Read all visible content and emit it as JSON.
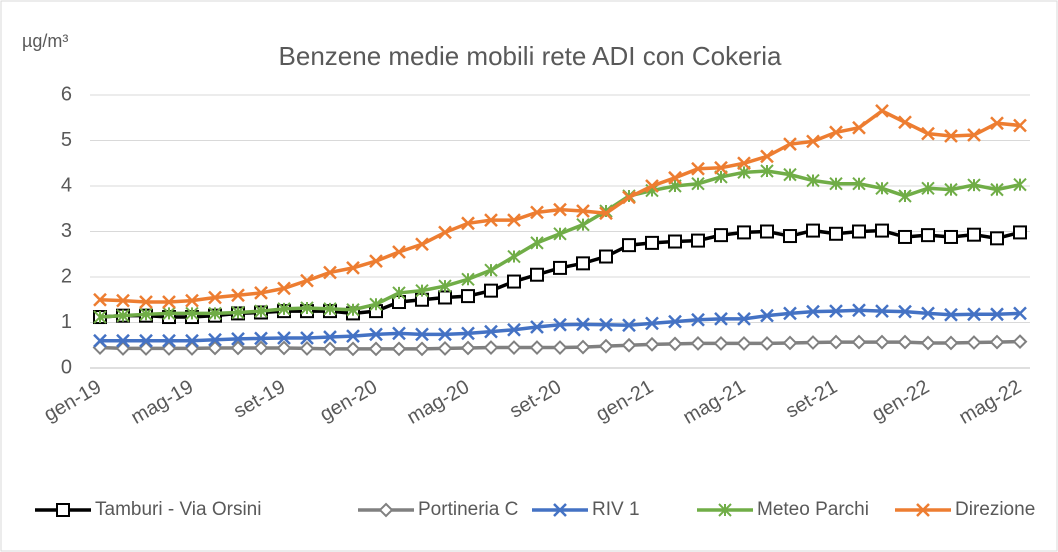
{
  "chart_data": {
    "type": "line",
    "title": "Benzene medie mobili rete ADI con Cokeria",
    "y_label": "µg/m³",
    "categories": [
      "gen-19",
      null,
      null,
      null,
      "mag-19",
      null,
      null,
      null,
      "set-19",
      null,
      null,
      null,
      "gen-20",
      null,
      null,
      null,
      "mag-20",
      null,
      null,
      null,
      "set-20",
      null,
      null,
      null,
      "gen-21",
      null,
      null,
      null,
      "mag-21",
      null,
      null,
      null,
      "set-21",
      null,
      null,
      null,
      "gen-22",
      null,
      null,
      null,
      "mag-22"
    ],
    "ylim": [
      0,
      6
    ],
    "yticks": [
      0,
      1,
      2,
      3,
      4,
      5,
      6
    ],
    "grid": true,
    "series": [
      {
        "name": "Tamburi - Via Orsini",
        "color": "#000000",
        "marker": "square",
        "values": [
          1.12,
          1.15,
          1.15,
          1.12,
          1.12,
          1.15,
          1.2,
          1.22,
          1.25,
          1.25,
          1.25,
          1.2,
          1.25,
          1.45,
          1.5,
          1.55,
          1.58,
          1.7,
          1.9,
          2.05,
          2.2,
          2.3,
          2.45,
          2.7,
          2.75,
          2.78,
          2.8,
          2.92,
          2.98,
          3.0,
          2.9,
          3.02,
          2.95,
          3.0,
          3.02,
          2.88,
          2.92,
          2.88,
          2.93,
          2.85,
          2.98
        ]
      },
      {
        "name": "Portineria C",
        "color": "#808080",
        "marker": "diamond",
        "values": [
          0.45,
          0.43,
          0.43,
          0.43,
          0.43,
          0.44,
          0.44,
          0.44,
          0.44,
          0.43,
          0.42,
          0.42,
          0.42,
          0.42,
          0.42,
          0.43,
          0.44,
          0.45,
          0.45,
          0.45,
          0.45,
          0.46,
          0.48,
          0.5,
          0.52,
          0.53,
          0.54,
          0.54,
          0.54,
          0.54,
          0.55,
          0.56,
          0.57,
          0.57,
          0.57,
          0.57,
          0.55,
          0.55,
          0.56,
          0.57,
          0.58
        ]
      },
      {
        "name": "RIV 1",
        "color": "#4472c4",
        "marker": "x",
        "values": [
          0.6,
          0.6,
          0.6,
          0.6,
          0.6,
          0.62,
          0.64,
          0.65,
          0.66,
          0.66,
          0.68,
          0.7,
          0.74,
          0.76,
          0.74,
          0.74,
          0.76,
          0.8,
          0.84,
          0.9,
          0.95,
          0.96,
          0.95,
          0.94,
          0.98,
          1.02,
          1.06,
          1.08,
          1.08,
          1.15,
          1.2,
          1.24,
          1.25,
          1.27,
          1.25,
          1.24,
          1.2,
          1.17,
          1.18,
          1.18,
          1.2
        ]
      },
      {
        "name": "Meteo Parchi",
        "color": "#70ad47",
        "marker": "star",
        "values": [
          1.12,
          1.15,
          1.18,
          1.2,
          1.2,
          1.2,
          1.22,
          1.25,
          1.3,
          1.32,
          1.3,
          1.28,
          1.4,
          1.65,
          1.7,
          1.8,
          1.95,
          2.15,
          2.45,
          2.75,
          2.95,
          3.15,
          3.45,
          3.78,
          3.9,
          4.0,
          4.05,
          4.2,
          4.3,
          4.33,
          4.25,
          4.12,
          4.05,
          4.05,
          3.95,
          3.78,
          3.95,
          3.92,
          4.02,
          3.92,
          4.03
        ]
      },
      {
        "name": "Direzione",
        "color": "#ed7d31",
        "marker": "x",
        "values": [
          1.5,
          1.48,
          1.45,
          1.45,
          1.48,
          1.55,
          1.6,
          1.65,
          1.75,
          1.92,
          2.1,
          2.2,
          2.35,
          2.55,
          2.72,
          2.98,
          3.18,
          3.25,
          3.25,
          3.42,
          3.48,
          3.45,
          3.4,
          3.75,
          4.0,
          4.18,
          4.38,
          4.4,
          4.5,
          4.65,
          4.92,
          4.98,
          5.18,
          5.28,
          5.65,
          5.4,
          5.15,
          5.1,
          5.12,
          5.38,
          5.33
        ]
      }
    ]
  }
}
